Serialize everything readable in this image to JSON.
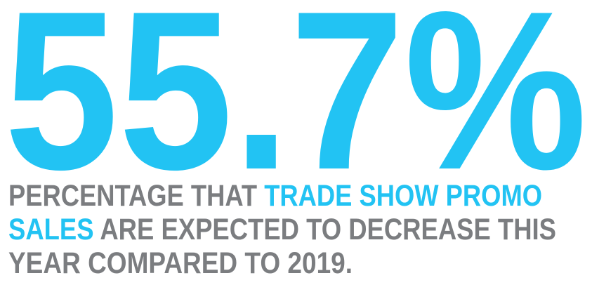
{
  "stat": "55.7%",
  "caption": {
    "lines": [
      [
        {
          "text": "PERCENTAGE THAT ",
          "highlight": false
        },
        {
          "text": "TRADE SHOW PROMO",
          "highlight": true
        }
      ],
      [
        {
          "text": "SALES",
          "highlight": true
        },
        {
          "text": " ARE EXPECTED TO DECREASE THIS",
          "highlight": false
        }
      ],
      [
        {
          "text": "YEAR COMPARED TO 2019.",
          "highlight": false
        }
      ]
    ]
  }
}
